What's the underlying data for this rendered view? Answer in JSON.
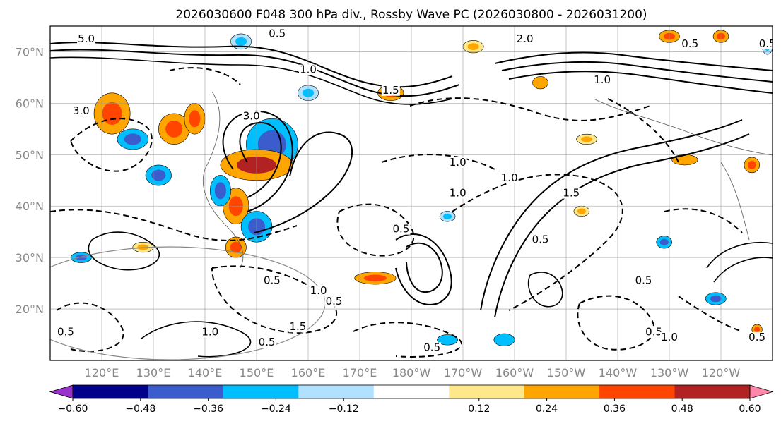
{
  "chart_data": {
    "type": "heatmap",
    "title": "2026030600 F048 300 hPa div., Rossby Wave PC (2026030800 - 2026031200)",
    "projection": "equirectangular",
    "lon_range_east": [
      110,
      250
    ],
    "lat_range": [
      10,
      75
    ],
    "lat_ticks": [
      {
        "value": 20,
        "label": "20°N"
      },
      {
        "value": 30,
        "label": "30°N"
      },
      {
        "value": 40,
        "label": "40°N"
      },
      {
        "value": 50,
        "label": "50°N"
      },
      {
        "value": 60,
        "label": "60°N"
      },
      {
        "value": 70,
        "label": "70°N"
      }
    ],
    "lon_ticks": [
      {
        "value": 120,
        "label": "120°E"
      },
      {
        "value": 130,
        "label": "130°E"
      },
      {
        "value": 140,
        "label": "140°E"
      },
      {
        "value": 150,
        "label": "150°E"
      },
      {
        "value": 160,
        "label": "160°E"
      },
      {
        "value": 170,
        "label": "170°E"
      },
      {
        "value": 180,
        "label": "180°W"
      },
      {
        "value": 190,
        "label": "170°W"
      },
      {
        "value": 200,
        "label": "160°W"
      },
      {
        "value": 210,
        "label": "150°W"
      },
      {
        "value": 220,
        "label": "140°W"
      },
      {
        "value": 230,
        "label": "130°W"
      },
      {
        "value": 240,
        "label": "120°W"
      }
    ],
    "colorbar": {
      "extend": "both",
      "min": -0.72,
      "max": 0.72,
      "levels": [
        -0.72,
        -0.6,
        -0.48,
        -0.36,
        -0.24,
        -0.12,
        0.12,
        0.24,
        0.36,
        0.48,
        0.6,
        0.72
      ],
      "colors": [
        "#9932cc",
        "#00008b",
        "#3a5ccc",
        "#00bfff",
        "#b0e2ff",
        "#ffffff",
        "#ffe88a",
        "#ffa500",
        "#ff4500",
        "#b22222",
        "#ff88aa"
      ],
      "tick_values": [
        -0.6,
        -0.48,
        -0.36,
        -0.24,
        -0.12,
        0.12,
        0.24,
        0.36,
        0.48,
        0.6
      ],
      "tick_labels": [
        "−0.60",
        "−0.48",
        "−0.36",
        "−0.24",
        "−0.12",
        "0.12",
        "0.24",
        "0.36",
        "0.48",
        "0.60"
      ]
    },
    "contour_labels": [
      {
        "text": "5.0",
        "lon": 117,
        "lat": 72
      },
      {
        "text": "0.5",
        "lon": 154,
        "lat": 73
      },
      {
        "text": "1.0",
        "lon": 160,
        "lat": 66
      },
      {
        "text": "1.5",
        "lon": 176,
        "lat": 62
      },
      {
        "text": "3.0",
        "lon": 116,
        "lat": 58
      },
      {
        "text": "3.0",
        "lon": 149,
        "lat": 57
      },
      {
        "text": "1.0",
        "lon": 189,
        "lat": 48
      },
      {
        "text": "1.0",
        "lon": 199,
        "lat": 45
      },
      {
        "text": "1.0",
        "lon": 189,
        "lat": 42
      },
      {
        "text": "0.5",
        "lon": 178,
        "lat": 35
      },
      {
        "text": "0.5",
        "lon": 153,
        "lat": 25
      },
      {
        "text": "1.0",
        "lon": 162,
        "lat": 23
      },
      {
        "text": "0.5",
        "lon": 165,
        "lat": 21
      },
      {
        "text": "1.5",
        "lon": 158,
        "lat": 16
      },
      {
        "text": "0.5",
        "lon": 152,
        "lat": 13
      },
      {
        "text": "0.5",
        "lon": 113,
        "lat": 15
      },
      {
        "text": "1.0",
        "lon": 141,
        "lat": 15
      },
      {
        "text": "0.5",
        "lon": 184,
        "lat": 12
      },
      {
        "text": "0.5",
        "lon": 225,
        "lat": 25
      },
      {
        "text": "0.5",
        "lon": 227,
        "lat": 15
      },
      {
        "text": "1.0",
        "lon": 230,
        "lat": 14
      },
      {
        "text": "0.5",
        "lon": 247,
        "lat": 14
      },
      {
        "text": "2.0",
        "lon": 202,
        "lat": 72
      },
      {
        "text": "1.0",
        "lon": 217,
        "lat": 64
      },
      {
        "text": "0.5",
        "lon": 234,
        "lat": 71
      },
      {
        "text": "0.5",
        "lon": 249,
        "lat": 71
      },
      {
        "text": "0.5",
        "lon": 205,
        "lat": 33
      },
      {
        "text": "1.5",
        "lon": 211,
        "lat": 42
      }
    ],
    "anomalies": [
      {
        "lon": 122,
        "lat": 58,
        "rx": 3.5,
        "ry": 4,
        "value": 0.4
      },
      {
        "lon": 126,
        "lat": 53,
        "rx": 3,
        "ry": 2,
        "value": -0.45
      },
      {
        "lon": 134,
        "lat": 55,
        "rx": 3,
        "ry": 3,
        "value": 0.4
      },
      {
        "lon": 138,
        "lat": 57,
        "rx": 2,
        "ry": 3,
        "value": 0.4
      },
      {
        "lon": 131,
        "lat": 46,
        "rx": 2.5,
        "ry": 2,
        "value": -0.4
      },
      {
        "lon": 153,
        "lat": 52,
        "rx": 5,
        "ry": 5,
        "value": -0.45
      },
      {
        "lon": 150,
        "lat": 48,
        "rx": 7,
        "ry": 3,
        "value": 0.52
      },
      {
        "lon": 146,
        "lat": 40,
        "rx": 2.5,
        "ry": 3.5,
        "value": 0.45
      },
      {
        "lon": 143,
        "lat": 43,
        "rx": 2,
        "ry": 3,
        "value": -0.4
      },
      {
        "lon": 150,
        "lat": 36,
        "rx": 3,
        "ry": 3,
        "value": -0.4
      },
      {
        "lon": 146,
        "lat": 32,
        "rx": 2,
        "ry": 2,
        "value": 0.4
      },
      {
        "lon": 147,
        "lat": 72,
        "rx": 2,
        "ry": 1.5,
        "value": -0.3
      },
      {
        "lon": 176,
        "lat": 62,
        "rx": 2.5,
        "ry": 1.5,
        "value": 0.4
      },
      {
        "lon": 160,
        "lat": 62,
        "rx": 2,
        "ry": 1.5,
        "value": -0.3
      },
      {
        "lon": 116,
        "lat": 30,
        "rx": 2,
        "ry": 1,
        "value": -0.45
      },
      {
        "lon": 128,
        "lat": 32,
        "rx": 2,
        "ry": 1,
        "value": 0.3
      },
      {
        "lon": 173,
        "lat": 26,
        "rx": 4,
        "ry": 1.2,
        "value": 0.4
      },
      {
        "lon": 187,
        "lat": 14,
        "rx": 2,
        "ry": 1,
        "value": -0.35
      },
      {
        "lon": 198,
        "lat": 14,
        "rx": 2,
        "ry": 1.2,
        "value": -0.35
      },
      {
        "lon": 187,
        "lat": 38,
        "rx": 1.5,
        "ry": 1,
        "value": -0.3
      },
      {
        "lon": 205,
        "lat": 64,
        "rx": 1.5,
        "ry": 1.2,
        "value": 0.35
      },
      {
        "lon": 192,
        "lat": 71,
        "rx": 2,
        "ry": 1.2,
        "value": 0.3
      },
      {
        "lon": 214,
        "lat": 53,
        "rx": 2,
        "ry": 1,
        "value": 0.3
      },
      {
        "lon": 233,
        "lat": 49,
        "rx": 2.5,
        "ry": 1,
        "value": 0.35
      },
      {
        "lon": 213,
        "lat": 39,
        "rx": 1.5,
        "ry": 1,
        "value": 0.3
      },
      {
        "lon": 229,
        "lat": 33,
        "rx": 1.5,
        "ry": 1.2,
        "value": -0.4
      },
      {
        "lon": 239,
        "lat": 22,
        "rx": 2,
        "ry": 1.2,
        "value": -0.4
      },
      {
        "lon": 230,
        "lat": 73,
        "rx": 2,
        "ry": 1.2,
        "value": 0.4
      },
      {
        "lon": 246,
        "lat": 48,
        "rx": 1.5,
        "ry": 1.5,
        "value": 0.45
      },
      {
        "lon": 247,
        "lat": 16,
        "rx": 1,
        "ry": 1,
        "value": 0.4
      },
      {
        "lon": 240,
        "lat": 73,
        "rx": 1.5,
        "ry": 1.2,
        "value": 0.4
      },
      {
        "lon": 249,
        "lat": 71,
        "rx": 1,
        "ry": 1.5,
        "value": -0.3
      }
    ]
  }
}
